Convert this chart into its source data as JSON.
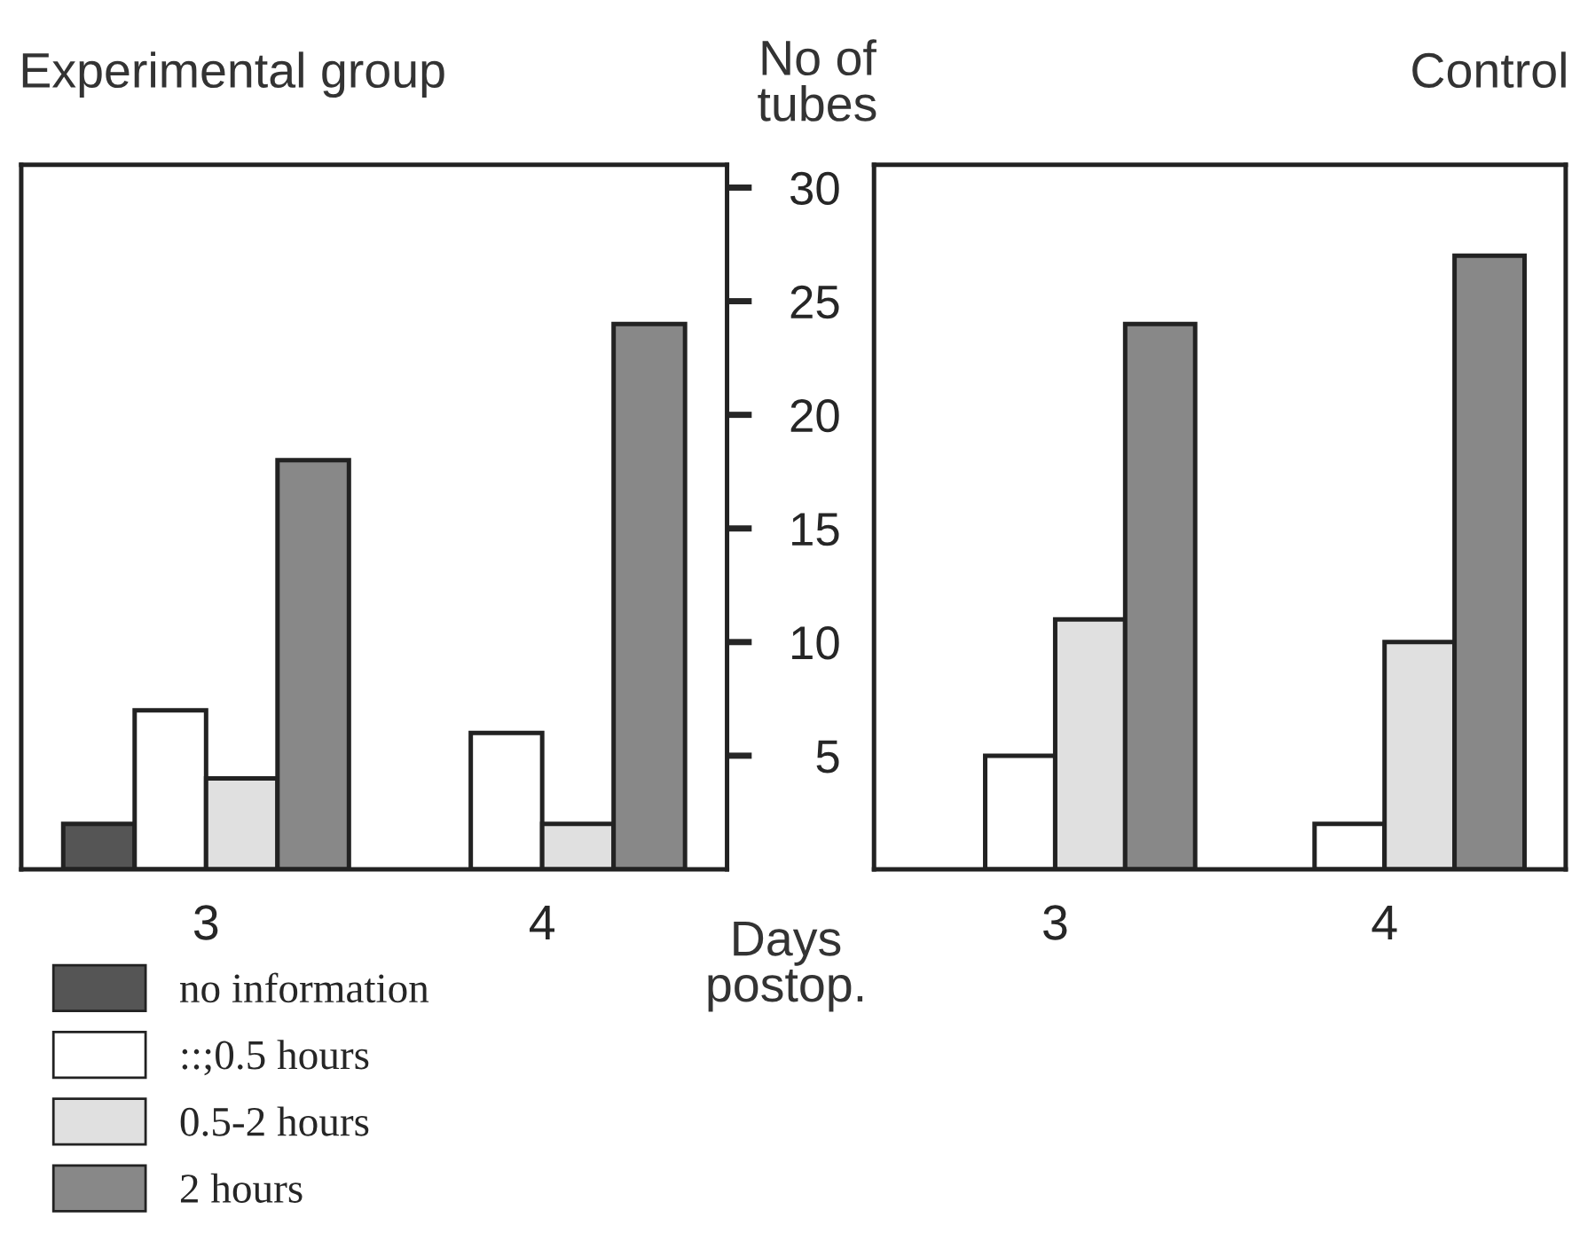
{
  "chart_data": [
    {
      "type": "bar",
      "title": "Experimental group",
      "categories": [
        "3",
        "4"
      ],
      "ylim": [
        0,
        31
      ],
      "yticks": [
        5,
        10,
        15,
        20,
        25,
        30
      ],
      "tick_labels": "x",
      "legend": "bottom left",
      "grid": false,
      "series": [
        {
          "name": "no information",
          "color": "#555555",
          "values": [
            2,
            null
          ]
        },
        {
          "name": "::;0.5 hours",
          "color": "#ffffff",
          "values": [
            7,
            6
          ]
        },
        {
          "name": "0.5-2 hours",
          "color": "#e0e0e0",
          "values": [
            4,
            2
          ]
        },
        {
          "name": "2 hours",
          "color": "#888888",
          "values": [
            18,
            24
          ]
        }
      ]
    },
    {
      "type": "bar",
      "title": "Control",
      "ylabel": "No of\ntubes",
      "xlabel": "Days\npostop.",
      "categories": [
        "3",
        "4"
      ],
      "ylim": [
        0,
        31
      ],
      "yticks": [
        5,
        10,
        15,
        20,
        25,
        30
      ],
      "grid": false,
      "series": [
        {
          "color": "#555555",
          "values": [
            null,
            null
          ]
        },
        {
          "color": "#ffffff",
          "values": [
            5,
            2
          ]
        },
        {
          "color": "#e0e0e0",
          "values": [
            11,
            10
          ]
        },
        {
          "color": "#888888",
          "values": [
            24,
            27
          ]
        }
      ]
    }
  ]
}
